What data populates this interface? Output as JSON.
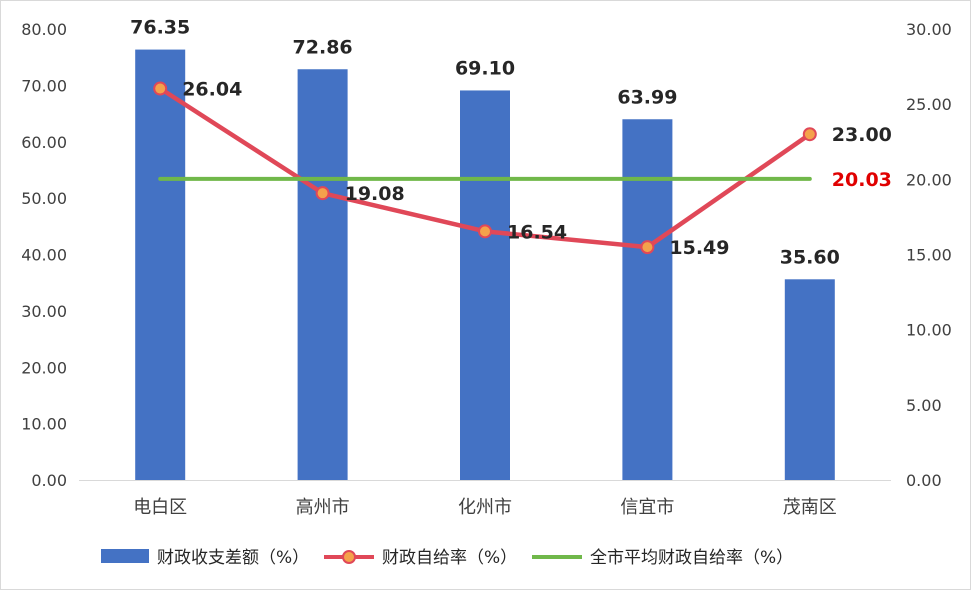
{
  "chart_data": {
    "type": "bar",
    "categories": [
      "电白区",
      "高州市",
      "化州市",
      "信宜市",
      "茂南区"
    ],
    "series": [
      {
        "name": "财政收支差额（%）",
        "type": "bar",
        "axis": "left",
        "color": "#4472C4",
        "values": [
          76.35,
          72.86,
          69.1,
          63.99,
          35.6
        ],
        "labels": [
          "76.35",
          "72.86",
          "69.10",
          "63.99",
          "35.60"
        ]
      },
      {
        "name": "财政自给率（%）",
        "type": "line",
        "axis": "right",
        "color": "#E04858",
        "marker_fill": "#F4A24B",
        "values": [
          26.04,
          19.08,
          16.54,
          15.49,
          23.0
        ],
        "labels": [
          "26.04",
          "19.08",
          "16.54",
          "15.49",
          "23.00"
        ]
      },
      {
        "name": "全市平均财政自给率（%）",
        "type": "line",
        "axis": "right",
        "color": "#70B84A",
        "values": [
          20.03,
          20.03,
          20.03,
          20.03,
          20.03
        ],
        "labels": [
          "",
          "",
          "",
          "",
          "20.03"
        ],
        "label_color": "#E00000"
      }
    ],
    "y_left": {
      "range": [
        0,
        80
      ],
      "ticks": [
        "0.00",
        "10.00",
        "20.00",
        "30.00",
        "40.00",
        "50.00",
        "60.00",
        "70.00",
        "80.00"
      ]
    },
    "y_right": {
      "range": [
        0,
        30
      ],
      "ticks": [
        "0.00",
        "5.00",
        "10.00",
        "15.00",
        "20.00",
        "25.00",
        "30.00"
      ]
    },
    "grid": false,
    "legend": "bottom"
  }
}
